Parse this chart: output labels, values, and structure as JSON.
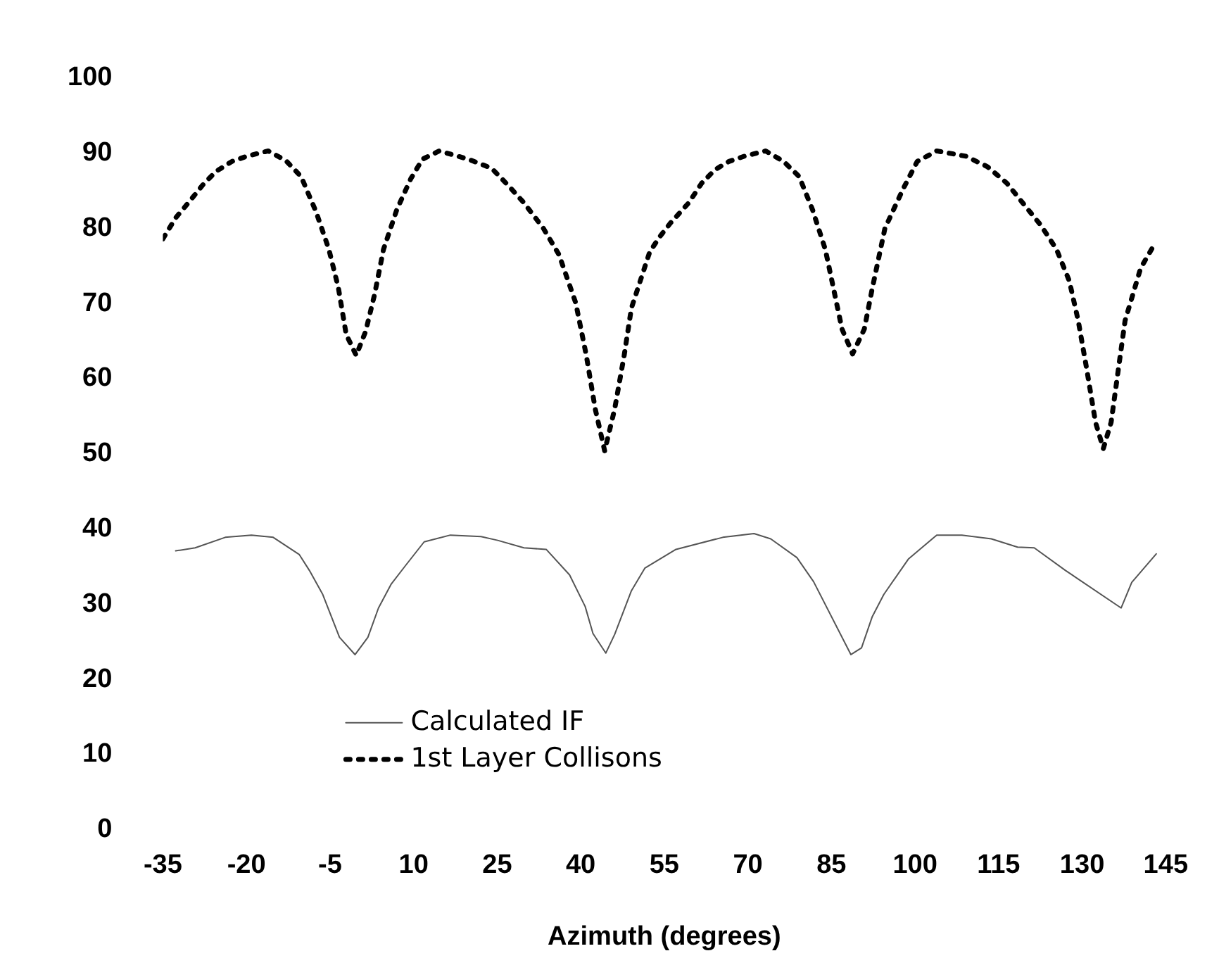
{
  "chart_data": {
    "type": "line",
    "xlabel": "Azimuth (degrees)",
    "xlim": [
      -35,
      145
    ],
    "xticks": [
      -35,
      -20,
      -5,
      10,
      25,
      40,
      55,
      70,
      85,
      100,
      115,
      130,
      145
    ],
    "ylim": [
      0,
      100
    ],
    "yticks": [
      0,
      10,
      20,
      30,
      40,
      50,
      60,
      70,
      80,
      90,
      100
    ],
    "grid": false,
    "legend": "bottom left",
    "marker": "none",
    "series": [
      {
        "name": "Calculated IF",
        "color": "#555555",
        "line_style": "solid",
        "x": [
          -32.7,
          -29.2,
          -23.8,
          -19.1,
          -15.2,
          -10.5,
          -8.7,
          -6.3,
          -3.3,
          -0.5,
          1.8,
          3.7,
          6.0,
          8.4,
          11.9,
          16.6,
          22.1,
          25.1,
          29.8,
          33.8,
          38.0,
          40.8,
          42.2,
          44.5,
          46.1,
          49.1,
          51.5,
          57.1,
          65.5,
          71.1,
          74.1,
          78.8,
          81.8,
          88.5,
          90.4,
          92.3,
          94.4,
          98.8,
          103.9,
          108.4,
          113.7,
          118.4,
          121.4,
          127.0,
          137.0,
          138.9,
          143.3
        ],
        "values": [
          37.1,
          37.5,
          38.9,
          39.2,
          38.9,
          36.6,
          34.5,
          31.3,
          25.6,
          23.3,
          25.6,
          29.5,
          32.7,
          35.0,
          38.3,
          39.2,
          39.0,
          38.5,
          37.5,
          37.3,
          33.9,
          29.7,
          26.1,
          23.5,
          26.0,
          31.8,
          34.8,
          37.3,
          38.9,
          39.4,
          38.7,
          36.2,
          33.0,
          23.3,
          24.2,
          28.3,
          31.3,
          36.0,
          39.2,
          39.2,
          38.7,
          37.6,
          37.5,
          34.5,
          29.5,
          32.9,
          36.7
        ]
      },
      {
        "name": "1st Layer Collisons",
        "color": "#000000",
        "line_style": "dotted",
        "x": [
          -35,
          -32.7,
          -30.2,
          -27.7,
          -25.4,
          -22.6,
          -19.9,
          -16.1,
          -12.9,
          -10.2,
          -7.5,
          -5.2,
          -3.5,
          -2.1,
          -0.3,
          1.4,
          3.0,
          4.6,
          7.0,
          9.5,
          11.6,
          14.6,
          19.8,
          24.0,
          27.0,
          29.8,
          33.3,
          36.1,
          39.1,
          41.0,
          42.6,
          44.3,
          46.1,
          47.8,
          49.1,
          52.4,
          54.3,
          56.1,
          59.4,
          61.7,
          64.1,
          66.6,
          69.4,
          73.2,
          76.4,
          79.2,
          81.6,
          83.9,
          85.4,
          86.9,
          88.8,
          90.9,
          92.3,
          94.6,
          97.9,
          100.4,
          103.9,
          109.1,
          113.0,
          116.5,
          119.1,
          122.6,
          125.4,
          127.7,
          129.3,
          130.7,
          132.4,
          133.8,
          135.2,
          136.6,
          137.7,
          138.9,
          140.5,
          142.6
        ],
        "values": [
          78.6,
          81.4,
          83.6,
          85.9,
          87.6,
          88.9,
          89.6,
          90.3,
          89.0,
          86.9,
          82.2,
          77.2,
          72.1,
          65.9,
          63.1,
          66.3,
          71.2,
          77.2,
          82.5,
          86.6,
          89.2,
          90.3,
          89.2,
          88.0,
          85.7,
          83.4,
          80.0,
          76.5,
          70.1,
          63.1,
          56.0,
          50.4,
          56.0,
          63.1,
          69.4,
          76.9,
          79.0,
          80.7,
          83.4,
          86.0,
          87.8,
          88.9,
          89.6,
          90.3,
          88.9,
          86.9,
          82.5,
          77.2,
          71.9,
          66.6,
          63.3,
          66.6,
          71.9,
          80.0,
          85.3,
          88.9,
          90.3,
          89.6,
          88.2,
          86.0,
          83.6,
          80.4,
          77.2,
          73.0,
          67.7,
          61.8,
          54.2,
          50.7,
          54.2,
          61.8,
          67.7,
          70.7,
          74.7,
          77.4
        ]
      }
    ]
  }
}
